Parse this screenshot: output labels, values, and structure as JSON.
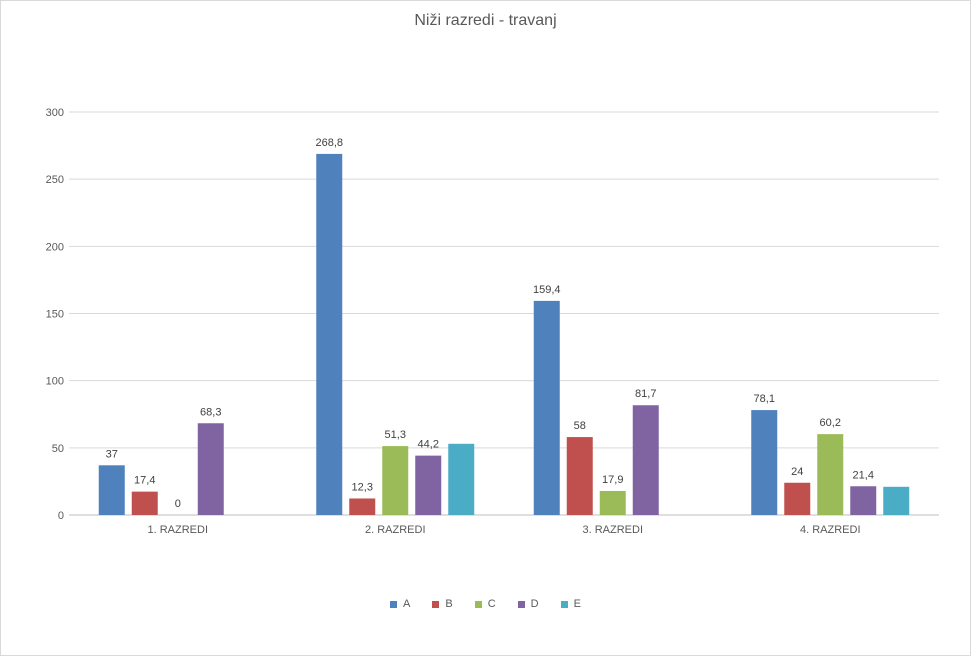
{
  "chart_data": {
    "type": "bar",
    "title": "Niži razredi - travanj",
    "categories": [
      "1. RAZREDI",
      "2. RAZREDI",
      "3. RAZREDI",
      "4. RAZREDI"
    ],
    "ylim": [
      0,
      300
    ],
    "yticks": [
      "0",
      "50",
      "100",
      "150",
      "200",
      "250",
      "300"
    ],
    "grid": true,
    "legend_position": "bottom",
    "series": [
      {
        "name": "A",
        "color": "#4f81bd",
        "values": [
          37,
          268.8,
          159.4,
          78.1
        ],
        "labels": [
          "37",
          "268,8",
          "159,4",
          "78,1"
        ]
      },
      {
        "name": "B",
        "color": "#c0504d",
        "values": [
          17.4,
          12.3,
          58,
          24
        ],
        "labels": [
          "17,4",
          "12,3",
          "58",
          "24"
        ]
      },
      {
        "name": "C",
        "color": "#9bbb59",
        "values": [
          0,
          51.3,
          17.9,
          60.2
        ],
        "labels": [
          "0",
          "51,3",
          "17,9",
          "60,2"
        ]
      },
      {
        "name": "D",
        "color": "#8064a2",
        "values": [
          68.3,
          44.2,
          81.7,
          21.4
        ],
        "labels": [
          "68,3",
          "44,2",
          "81,7",
          "21,4"
        ]
      },
      {
        "name": "E",
        "color": "#4bacc6",
        "values": [
          null,
          53,
          null,
          21
        ],
        "labels": [
          null,
          null,
          null,
          null
        ]
      }
    ]
  }
}
